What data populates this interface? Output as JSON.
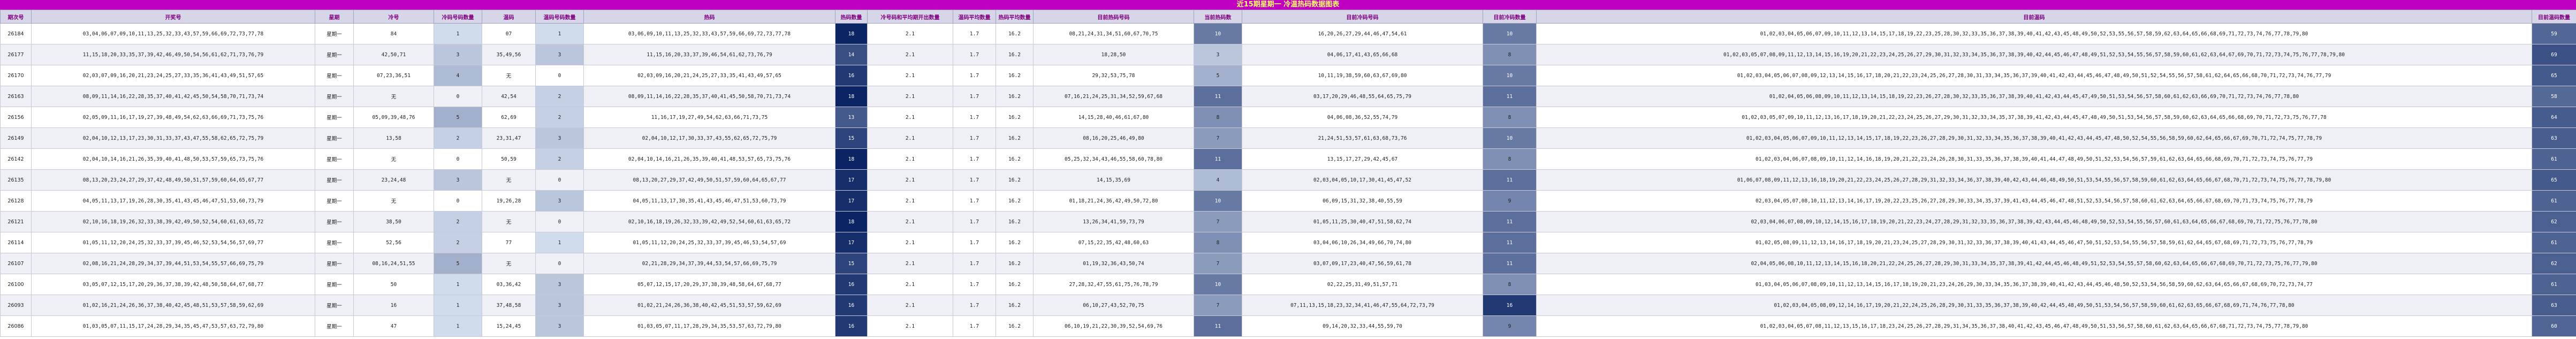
{
  "header": {
    "title": "近15期星期一 冷温热码数据图表"
  },
  "table": {
    "columns": [
      "期次号",
      "开奖号",
      "星期",
      "冷号",
      "冷码号码数量",
      "温码",
      "温码号码数量",
      "热码",
      "热码数量",
      "冷号码和平均期开出数量",
      "温码平均数量",
      "热码平均数量",
      "目前热码号码",
      "当前热码数",
      "目前冷码号码",
      "目前冷码数量",
      "目前温码",
      "目前温码数量"
    ],
    "rows": [
      [
        "26184",
        "03,04,06,07,09,10,11,13,25,32,33,43,57,59,66,69,72,73,77,78",
        "星期一",
        "84",
        1,
        "07",
        1,
        "03,06,09,10,11,13,25,32,33,43,57,59,66,69,72,73,77,78",
        18,
        "2.1",
        "1.7",
        "16.2",
        "08,21,24,31,34,51,60,67,70,75",
        10,
        "16,20,26,27,29,44,46,47,54,61",
        10,
        "01,02,03,04,05,06,07,09,10,11,12,13,14,15,17,18,19,22,23,25,28,30,32,33,35,36,37,38,39,40,41,42,43,45,48,49,50,52,53,55,56,57,58,59,62,63,64,65,66,68,69,71,72,73,74,76,77,78,79,80",
        59
      ],
      [
        "26177",
        "11,15,18,20,33,35,37,39,42,46,49,50,54,56,61,62,71,73,76,79",
        "星期一",
        "42,50,71",
        3,
        "35,49,56",
        3,
        "11,15,16,20,33,37,39,46,54,61,62,73,76,79",
        14,
        "2.1",
        "1.7",
        "16.2",
        "18,28,50",
        3,
        "04,06,17,41,43,65,66,68",
        8,
        "01,02,03,05,07,08,09,11,12,13,14,15,16,19,20,21,22,23,24,25,26,27,29,30,31,32,33,34,35,36,37,38,39,40,42,44,45,46,47,48,49,51,52,53,54,55,56,57,58,59,60,61,62,63,64,67,69,70,71,72,73,74,75,76,77,78,79,80",
        69
      ],
      [
        "26170",
        "02,03,07,09,16,20,21,23,24,25,27,33,35,36,41,43,49,51,57,65",
        "星期一",
        "07,23,36,51",
        4,
        "无",
        0,
        "02,03,09,16,20,21,24,25,27,33,35,41,43,49,57,65",
        16,
        "2.1",
        "1.7",
        "16.2",
        "29,32,53,75,78",
        5,
        "10,11,19,38,59,60,63,67,69,80",
        10,
        "01,02,03,04,05,06,07,08,09,12,13,14,15,16,17,18,20,21,22,23,24,25,26,27,28,30,31,33,34,35,36,37,39,40,41,42,43,44,45,46,47,48,49,50,51,52,54,55,56,57,58,61,62,64,65,66,68,70,71,72,73,74,76,77,79",
        65
      ],
      [
        "26163",
        "08,09,11,14,16,22,28,35,37,40,41,42,45,50,54,58,70,71,73,74",
        "星期一",
        "无",
        0,
        "42,54",
        2,
        "08,09,11,14,16,22,28,35,37,40,41,45,50,58,70,71,73,74",
        18,
        "2.1",
        "1.7",
        "16.2",
        "07,16,21,24,25,31,34,52,59,67,68",
        11,
        "03,17,20,29,46,48,55,64,65,75,79",
        11,
        "01,02,04,05,06,08,09,10,11,12,13,14,15,18,19,22,23,26,27,28,30,32,33,35,36,37,38,39,40,41,42,43,44,45,47,49,50,51,53,54,56,57,58,60,61,62,63,66,69,70,71,72,73,74,76,77,78,80",
        58
      ],
      [
        "26156",
        "02,05,09,11,16,17,19,27,39,48,49,54,62,63,66,69,71,73,75,76",
        "星期一",
        "05,09,39,48,76",
        5,
        "62,69",
        2,
        "11,16,17,19,27,49,54,62,63,66,71,73,75",
        13,
        "2.1",
        "1.7",
        "16.2",
        "14,15,28,40,46,61,67,80",
        8,
        "04,06,08,36,52,55,74,79",
        8,
        "01,02,03,05,07,09,10,11,12,13,16,17,18,19,20,21,22,23,24,25,26,27,29,30,31,32,33,34,35,37,38,39,41,42,43,44,45,47,48,49,50,51,53,54,56,57,58,59,60,62,63,64,65,66,68,69,70,71,72,73,75,76,77,78",
        64
      ],
      [
        "26149",
        "02,04,10,12,13,17,23,30,31,33,37,43,47,55,58,62,65,72,75,79",
        "星期一",
        "13,58",
        2,
        "23,31,47",
        3,
        "02,04,10,12,17,30,33,37,43,55,62,65,72,75,79",
        15,
        "2.1",
        "1.7",
        "16.2",
        "08,16,20,25,46,49,80",
        7,
        "21,24,51,53,57,61,63,68,73,76",
        10,
        "01,02,03,04,05,06,07,09,10,11,12,13,14,15,17,18,19,22,23,26,27,28,29,30,31,32,33,34,35,36,37,38,39,40,41,42,43,44,45,47,48,50,52,54,55,56,58,59,60,62,64,65,66,67,69,70,71,72,74,75,77,78,79",
        63
      ],
      [
        "26142",
        "02,04,10,14,16,21,26,35,39,40,41,48,50,53,57,59,65,73,75,76",
        "星期一",
        "无",
        0,
        "50,59",
        2,
        "02,04,10,14,16,21,26,35,39,40,41,48,53,57,65,73,75,76",
        18,
        "2.1",
        "1.7",
        "16.2",
        "05,25,32,34,43,46,55,58,60,78,80",
        11,
        "13,15,17,27,29,42,45,67",
        8,
        "01,02,03,04,06,07,08,09,10,11,12,14,16,18,19,20,21,22,23,24,26,28,30,31,33,35,36,37,38,39,40,41,44,47,48,49,50,51,52,53,54,56,57,59,61,62,63,64,65,66,68,69,70,71,72,73,74,75,76,77,79",
        61
      ],
      [
        "26135",
        "08,13,20,23,24,27,29,37,42,48,49,50,51,57,59,60,64,65,67,77",
        "星期一",
        "23,24,48",
        3,
        "无",
        0,
        "08,13,20,27,29,37,42,49,50,51,57,59,60,64,65,67,77",
        17,
        "2.1",
        "1.7",
        "16.2",
        "14,15,35,69",
        4,
        "02,03,04,05,10,17,30,41,45,47,52",
        11,
        "01,06,07,08,09,11,12,13,16,18,19,20,21,22,23,24,25,26,27,28,29,31,32,33,34,36,37,38,39,40,42,43,44,46,48,49,50,51,53,54,55,56,57,58,59,60,61,62,63,64,65,66,67,68,70,71,72,73,74,75,76,77,78,79,80",
        65
      ],
      [
        "26128",
        "04,05,11,13,17,19,26,28,30,35,41,43,45,46,47,51,53,60,73,79",
        "星期一",
        "无",
        0,
        "19,26,28",
        3,
        "04,05,11,13,17,30,35,41,43,45,46,47,51,53,60,73,79",
        17,
        "2.1",
        "1.7",
        "16.2",
        "01,18,21,24,36,42,49,50,72,80",
        10,
        "06,09,15,31,32,38,40,55,59",
        9,
        "02,03,04,05,07,08,10,11,12,13,14,16,17,19,20,22,23,25,26,27,28,29,30,33,34,35,37,39,41,43,44,45,46,47,48,51,52,53,54,56,57,58,60,61,62,63,64,65,66,67,68,69,70,71,73,74,75,76,77,78,79",
        61
      ],
      [
        "26121",
        "02,10,16,18,19,26,32,33,38,39,42,49,50,52,54,60,61,63,65,72",
        "星期一",
        "38,50",
        2,
        "无",
        0,
        "02,10,16,18,19,26,32,33,39,42,49,52,54,60,61,63,65,72",
        18,
        "2.1",
        "1.7",
        "16.2",
        "13,26,34,41,59,73,79",
        7,
        "01,05,11,25,30,40,47,51,58,62,74",
        11,
        "02,03,04,06,07,08,09,10,12,14,15,16,17,18,19,20,21,22,23,24,27,28,29,31,32,33,35,36,37,38,39,42,43,44,45,46,48,49,50,52,53,54,55,56,57,60,61,63,64,65,66,67,68,69,70,71,72,75,76,77,78,80",
        62
      ],
      [
        "26114",
        "01,05,11,12,20,24,25,32,33,37,39,45,46,52,53,54,56,57,69,77",
        "星期一",
        "52,56",
        2,
        "77",
        1,
        "01,05,11,12,20,24,25,32,33,37,39,45,46,53,54,57,69",
        17,
        "2.1",
        "1.7",
        "16.2",
        "07,15,22,35,42,48,60,63",
        8,
        "03,04,06,10,26,34,49,66,70,74,80",
        11,
        "01,02,05,08,09,11,12,13,14,16,17,18,19,20,21,23,24,25,27,28,29,30,31,32,33,36,37,38,39,40,41,43,44,45,46,47,50,51,52,53,54,55,56,57,58,59,61,62,64,65,67,68,69,71,72,73,75,76,77,78,79",
        61
      ],
      [
        "26107",
        "02,08,16,21,24,28,29,34,37,39,44,51,53,54,55,57,66,69,75,79",
        "星期一",
        "08,16,24,51,55",
        5,
        "无",
        0,
        "02,21,28,29,34,37,39,44,53,54,57,66,69,75,79",
        15,
        "2.1",
        "1.7",
        "16.2",
        "01,19,32,36,43,50,74",
        7,
        "03,07,09,17,23,40,47,56,59,61,78",
        11,
        "02,04,05,06,08,10,11,12,13,14,15,16,18,20,21,22,24,25,26,27,28,29,30,31,33,34,35,37,38,39,41,42,44,45,46,48,49,51,52,53,54,55,57,58,60,62,63,64,65,66,67,68,69,70,71,72,73,75,76,77,79,80",
        62
      ],
      [
        "26100",
        "03,05,07,12,15,17,20,29,36,37,38,39,42,48,50,58,64,67,68,77",
        "星期一",
        "50",
        1,
        "03,36,42",
        3,
        "05,07,12,15,17,20,29,37,38,39,48,58,64,67,68,77",
        16,
        "2.1",
        "1.7",
        "16.2",
        "27,28,32,47,55,61,75,76,78,79",
        10,
        "02,22,25,31,49,51,57,71",
        8,
        "01,03,04,05,06,07,08,09,10,11,12,13,14,15,16,17,18,19,20,21,23,24,26,29,30,33,34,35,36,37,38,39,40,41,42,43,44,45,46,48,50,52,53,54,56,58,59,60,62,63,64,65,66,67,68,69,70,72,73,74,77",
        61
      ],
      [
        "26093",
        "01,02,16,21,24,26,36,37,38,40,42,45,48,51,53,57,58,59,62,69",
        "星期一",
        "16",
        1,
        "37,48,58",
        3,
        "01,02,21,24,26,36,38,40,42,45,51,53,57,59,62,69",
        16,
        "2.1",
        "1.7",
        "16.2",
        "06,10,27,43,52,70,75",
        7,
        "07,11,13,15,18,23,32,34,41,46,47,55,64,72,73,79",
        16,
        "01,02,03,04,05,08,09,12,14,16,17,19,20,21,22,24,25,26,28,29,30,31,33,35,36,37,38,39,40,42,44,45,48,49,50,51,53,54,56,57,58,59,60,61,62,63,65,66,67,68,69,71,74,76,77,78,80",
        63
      ],
      [
        "26086",
        "01,03,05,07,11,15,17,24,28,29,34,35,45,47,53,57,63,72,79,80",
        "星期一",
        "47",
        1,
        "15,24,45",
        3,
        "01,03,05,07,11,17,28,29,34,35,53,57,63,72,79,80",
        16,
        "2.1",
        "1.7",
        "16.2",
        "06,10,19,21,22,30,39,52,54,69,76",
        11,
        "09,14,20,32,33,44,55,59,70",
        9,
        "01,02,03,04,05,07,08,11,12,13,15,16,17,18,23,24,25,26,27,28,29,31,34,35,36,37,38,40,41,42,43,45,46,47,48,49,50,51,53,56,57,58,60,61,62,63,64,65,66,67,68,71,72,73,74,75,77,78,79,80",
        60
      ]
    ]
  }
}
